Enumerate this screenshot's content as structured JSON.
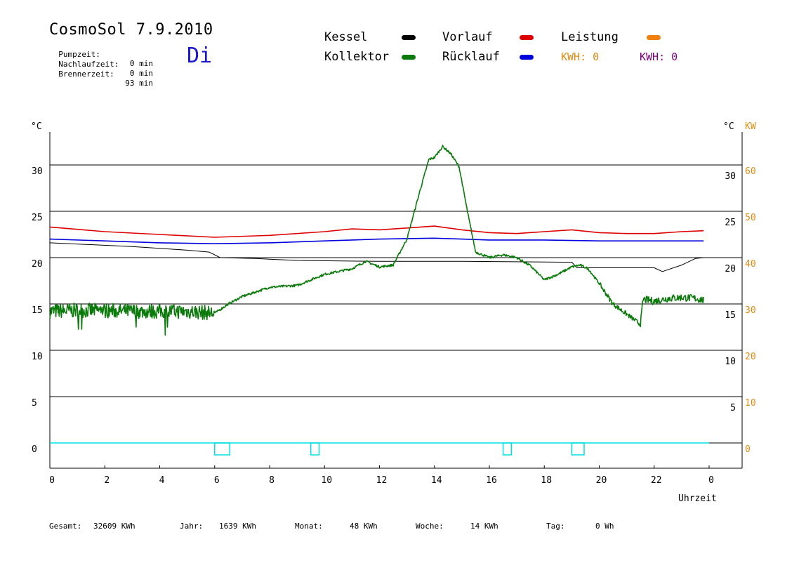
{
  "header": {
    "title": "CosmoSol 7.9.2010",
    "day": "Di",
    "pumpzeit_label": "Pumpzeit:",
    "pumpzeit_value": "0 min",
    "nachlauf_label": "Nachlaufzeit:",
    "nachlauf_value": "0 min",
    "brenner_label": "Brennerzeit:",
    "brenner_value": "93 min"
  },
  "legend": {
    "kessel": "Kessel",
    "kollektor": "Kollektor",
    "vorlauf": "Vorlauf",
    "ruecklauf": "Rücklauf",
    "leistung": "Leistung",
    "kwh1": "KWH: 0",
    "kwh2": "KWH: 0"
  },
  "axes": {
    "left_unit": "°C",
    "right_unit": "°C",
    "kw_unit": "KW",
    "xlabel": "Uhrzeit"
  },
  "footer": {
    "gesamt_label": "Gesamt:",
    "gesamt_value": "32609 KWh",
    "jahr_label": "Jahr:",
    "jahr_value": "1639 KWh",
    "monat_label": "Monat:",
    "monat_value": "48 KWh",
    "woche_label": "Woche:",
    "woche_value": "14 KWh",
    "tag_label": "Tag:",
    "tag_value": "0 Wh"
  },
  "colors": {
    "kessel": "#000000",
    "kollektor": "#0a7a0a",
    "vorlauf": "#dd0000",
    "ruecklauf": "#0000dd",
    "leistung": "#f08010",
    "kwh_purple": "#800080",
    "pump": "#00e0e0",
    "kw_axis": "#e08a10"
  },
  "chart_data": {
    "type": "line",
    "xlabel": "Uhrzeit",
    "ylabel": "°C",
    "xlim": [
      0,
      24
    ],
    "ylim": [
      -2.5,
      33.5
    ],
    "y_ticks_left": [
      0,
      5,
      10,
      15,
      20,
      25,
      30
    ],
    "y_ticks_right": [
      5,
      10,
      15,
      20,
      25,
      30
    ],
    "kw_ticks": [
      0,
      10,
      20,
      30,
      40,
      50,
      60
    ],
    "x_tick_labels": [
      "0",
      "2",
      "4",
      "6",
      "8",
      "10",
      "12",
      "14",
      "16",
      "18",
      "20",
      "22",
      "0"
    ],
    "gridlines": [
      0,
      5,
      10,
      15,
      20,
      25,
      30
    ],
    "series": [
      {
        "name": "Vorlauf",
        "color": "#dd0000",
        "x": [
          0,
          2,
          4,
          6,
          8,
          10,
          11,
          12,
          13,
          14,
          15,
          16,
          17,
          18,
          19,
          20,
          21,
          22,
          23,
          23.8
        ],
        "y": [
          23.3,
          22.8,
          22.5,
          22.2,
          22.4,
          22.8,
          23.1,
          23.0,
          23.2,
          23.4,
          23.0,
          22.7,
          22.6,
          22.8,
          23.0,
          22.7,
          22.6,
          22.6,
          22.8,
          22.9
        ]
      },
      {
        "name": "Rücklauf",
        "color": "#0000dd",
        "x": [
          0,
          2,
          4,
          6,
          8,
          10,
          12,
          14,
          15,
          16,
          18,
          20,
          22,
          23.8
        ],
        "y": [
          22.0,
          21.8,
          21.6,
          21.5,
          21.6,
          21.8,
          22.0,
          22.1,
          22.0,
          21.9,
          21.9,
          21.8,
          21.8,
          21.8
        ]
      },
      {
        "name": "Kessel",
        "color": "#000000",
        "x": [
          0,
          3,
          5,
          5.8,
          6.2,
          7.5,
          9,
          12,
          15,
          19,
          19.2,
          22,
          22.3,
          23,
          23.5,
          23.8
        ],
        "y": [
          21.6,
          21.2,
          20.8,
          20.6,
          20.0,
          19.9,
          19.7,
          19.6,
          19.6,
          19.5,
          18.9,
          18.9,
          18.5,
          19.2,
          19.9,
          20.0
        ]
      },
      {
        "name": "Kollektor",
        "color": "#0a7a0a",
        "x": [
          0,
          1,
          2,
          3,
          4,
          5,
          6,
          6.5,
          7,
          8,
          9,
          10,
          11,
          11.5,
          12,
          12.5,
          13,
          13.5,
          13.8,
          14,
          14.3,
          14.6,
          14.9,
          15.2,
          15.5,
          16,
          16.5,
          17,
          17.5,
          18,
          18.5,
          19,
          19.3,
          19.6,
          20,
          20.5,
          21,
          21.5,
          21.6,
          22,
          22.5,
          23,
          23.5,
          23.8
        ],
        "y": [
          14.2,
          14.3,
          14.3,
          14.2,
          14.2,
          14.2,
          14.0,
          15.0,
          15.8,
          16.8,
          17.0,
          18.2,
          18.8,
          19.6,
          19.0,
          19.2,
          22.0,
          27.5,
          30.6,
          30.8,
          32.0,
          31.2,
          29.8,
          25.0,
          20.6,
          20.0,
          20.3,
          20.0,
          19.1,
          17.6,
          18.2,
          19.0,
          19.2,
          18.8,
          17.2,
          15.0,
          13.9,
          12.8,
          15.5,
          15.3,
          15.6,
          15.7,
          15.6,
          15.4
        ]
      },
      {
        "name": "Leistung",
        "color": "#f08010",
        "x": [],
        "y": []
      }
    ],
    "pump_intervals": [
      [
        6.0,
        6.55
      ],
      [
        9.5,
        9.8
      ],
      [
        16.5,
        16.8
      ],
      [
        19.0,
        19.45
      ]
    ]
  }
}
